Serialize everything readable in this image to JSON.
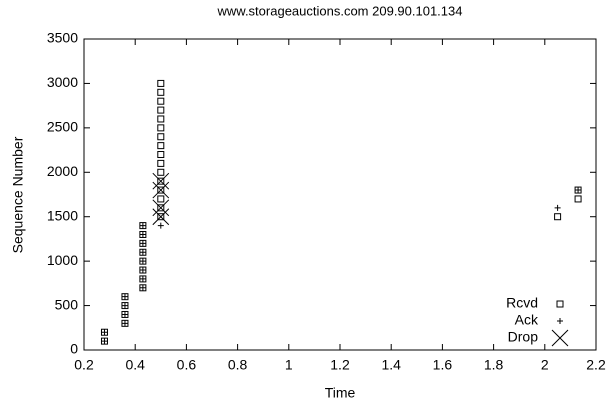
{
  "chart_data": {
    "type": "scatter",
    "title": "www.storageauctions.com 209.90.101.134",
    "x_label": "Time",
    "y_label": "Sequence Number",
    "xlim": [
      0.2,
      2.2
    ],
    "xticks": [
      0.2,
      0.4,
      0.6,
      0.8,
      1,
      1.2,
      1.4,
      1.6,
      1.8,
      2,
      2.2
    ],
    "ylim": [
      0,
      3500
    ],
    "yticks": [
      0,
      500,
      1000,
      1500,
      2000,
      2500,
      3000,
      3500
    ],
    "legend": "bottom right",
    "series": [
      {
        "name": "Rcvd",
        "color": "#000000",
        "marker": "square",
        "x": [
          0.28,
          0.28,
          0.36,
          0.36,
          0.36,
          0.36,
          0.43,
          0.43,
          0.43,
          0.43,
          0.43,
          0.43,
          0.43,
          0.43,
          0.5,
          0.5,
          0.5,
          0.5,
          0.5,
          0.5,
          0.5,
          0.5,
          0.5,
          0.5,
          0.5,
          0.5,
          0.5,
          0.5,
          0.5,
          0.5,
          2.05,
          2.13,
          2.13
        ],
        "values": [
          100,
          200,
          300,
          400,
          500,
          600,
          700,
          800,
          900,
          1000,
          1100,
          1200,
          1300,
          1400,
          1500,
          1600,
          1700,
          1800,
          1900,
          2000,
          2100,
          2200,
          2300,
          2400,
          2500,
          2600,
          2700,
          2800,
          2900,
          3000,
          1500,
          1700,
          1800
        ]
      },
      {
        "name": "Ack",
        "color": "#000000",
        "marker": "plus",
        "x": [
          0.28,
          0.28,
          0.36,
          0.36,
          0.36,
          0.36,
          0.43,
          0.43,
          0.43,
          0.43,
          0.43,
          0.43,
          0.43,
          0.43,
          0.5,
          2.05,
          2.13
        ],
        "values": [
          100,
          200,
          300,
          400,
          500,
          600,
          700,
          800,
          900,
          1000,
          1100,
          1200,
          1300,
          1400,
          1400,
          1600,
          1800
        ]
      },
      {
        "name": "Drop",
        "color": "#000000",
        "marker": "cross",
        "x": [
          0.5,
          0.5,
          0.5,
          0.5
        ],
        "values": [
          1500,
          1600,
          1800,
          1900
        ]
      }
    ]
  }
}
